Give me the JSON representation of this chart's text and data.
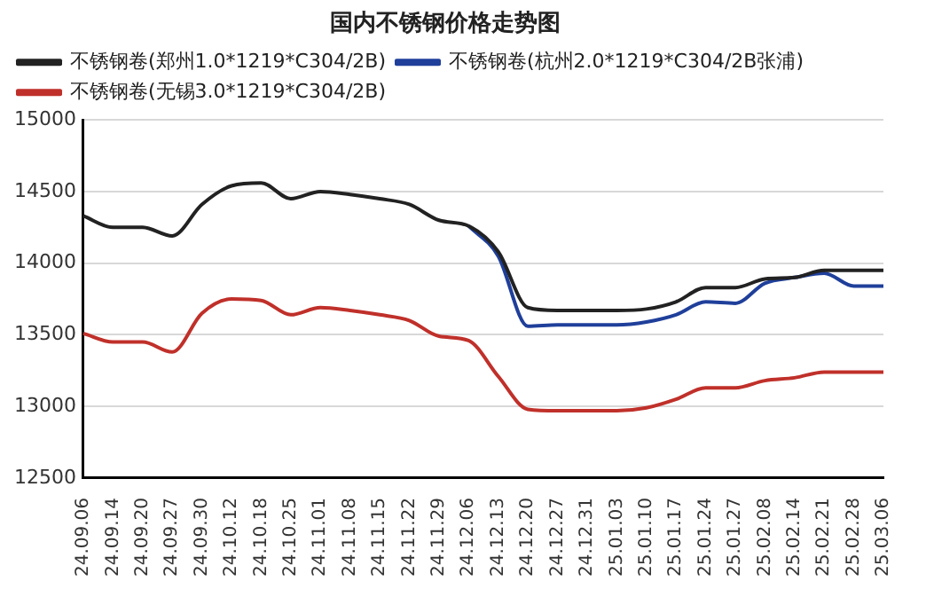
{
  "chart_data": {
    "type": "line",
    "title": "国内不锈钢价格走势图",
    "categories": [
      "24.09.06",
      "24.09.14",
      "24.09.20",
      "24.09.27",
      "24.09.30",
      "24.10.12",
      "24.10.18",
      "24.10.25",
      "24.11.01",
      "24.11.08",
      "24.11.15",
      "24.11.22",
      "24.11.29",
      "24.12.06",
      "24.12.13",
      "24.12.20",
      "24.12.27",
      "24.12.31",
      "25.01.03",
      "25.01.10",
      "25.01.17",
      "25.01.24",
      "25.01.27",
      "25.02.08",
      "25.02.14",
      "25.02.21",
      "25.02.28",
      "25.03.06"
    ],
    "series": [
      {
        "name": "不锈钢卷(郑州1.0*1219*C304/2B)",
        "color": "#222222",
        "values": [
          14330,
          14250,
          14250,
          14190,
          14410,
          14540,
          14560,
          14450,
          14500,
          14480,
          14450,
          14410,
          14300,
          14260,
          14080,
          13690,
          13670,
          13670,
          13670,
          13680,
          13730,
          13830,
          13830,
          13890,
          13900,
          13950,
          13950,
          13950
        ]
      },
      {
        "name": "不锈钢卷(杭州2.0*1219*C304/2B张浦)",
        "color": "#1f3f9a",
        "values": [
          null,
          null,
          null,
          null,
          null,
          null,
          null,
          null,
          null,
          null,
          null,
          null,
          null,
          14260,
          14050,
          13560,
          13570,
          13570,
          13570,
          13590,
          13640,
          13730,
          13720,
          13860,
          13900,
          13930,
          13840,
          13840
        ]
      },
      {
        "name": "不锈钢卷(无锡3.0*1219*C304/2B)",
        "color": "#c0302a",
        "values": [
          13510,
          13450,
          13450,
          13380,
          13650,
          13750,
          13740,
          13640,
          13690,
          13670,
          13640,
          13600,
          13490,
          13460,
          13210,
          12980,
          12970,
          12970,
          12970,
          12990,
          13050,
          13130,
          13130,
          13180,
          13200,
          13240,
          13240,
          13240
        ]
      }
    ],
    "ylim": [
      12500,
      15000
    ],
    "yticks": [
      12500,
      13000,
      13500,
      14000,
      14500,
      15000
    ],
    "grid": "y",
    "legend": "top left",
    "marker": "none",
    "line_style": "solid"
  }
}
